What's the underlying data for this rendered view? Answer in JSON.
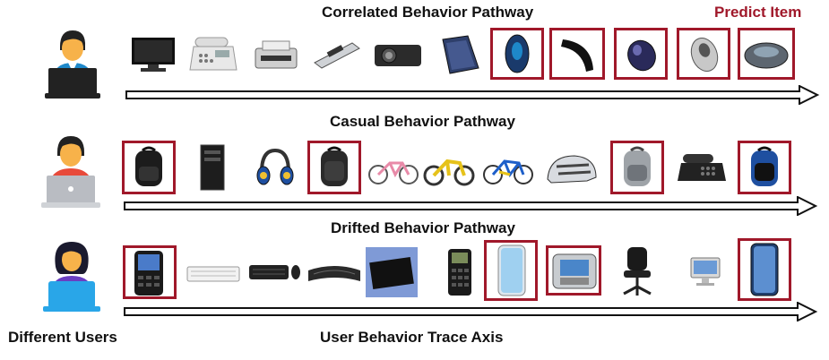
{
  "titles": {
    "row1": "Correlated Behavior Pathway",
    "row2": "Casual Behavior Pathway",
    "row3": "Drifted Behavior Pathway",
    "predict": "Predict Item",
    "users": "Different Users",
    "axis": "User Behavior Trace Axis"
  },
  "colors": {
    "highlight": "#a0182a",
    "user_skin": "#f7b24a",
    "user1_shirt": "#1e88c9",
    "user2_shirt": "#e84a3a",
    "user3_shirt": "#6a3ec2",
    "laptop_dark": "#222222",
    "laptop_gray": "#b9bcc2",
    "laptop_blue": "#29a6e8"
  },
  "rows": [
    {
      "user": "user-1",
      "items": [
        "tv-monitor",
        "desk-phone",
        "printer",
        "scanner",
        "projector",
        "binder",
        "mouse-blue",
        "mouse-arc",
        "mouse-purple",
        "mouse-silver",
        "mouse-gray"
      ],
      "highlighted": [
        6,
        7,
        8,
        9,
        10
      ]
    },
    {
      "user": "user-2",
      "items": [
        "backpack",
        "pc-tower",
        "headphones",
        "backpack",
        "bicycle-pink",
        "bicycle-yellow",
        "bicycle-blue",
        "helmet",
        "backpack-gray",
        "desk-phone",
        "backpack-blue"
      ],
      "highlighted": [
        0,
        3,
        8,
        10
      ]
    },
    {
      "user": "user-3",
      "items": [
        "blackberry-phone",
        "keyboard-white",
        "keyboard-mouse",
        "keyboard-curved",
        "keyboard-flat",
        "calculator",
        "iphone-silver",
        "flip-phone",
        "office-chair",
        "imac",
        "iphone-blue"
      ],
      "highlighted": [
        0,
        6,
        7,
        10
      ]
    }
  ]
}
